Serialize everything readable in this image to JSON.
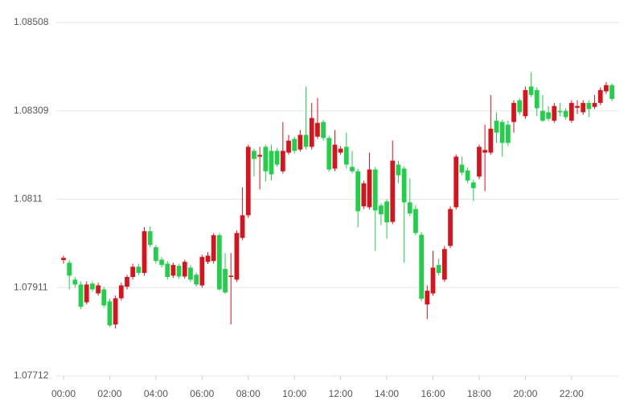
{
  "chart_data": {
    "type": "candlestick",
    "x": [
      0,
      0.25,
      0.5,
      0.75,
      1,
      1.25,
      1.5,
      1.75,
      2,
      2.25,
      2.5,
      2.75,
      3,
      3.25,
      3.5,
      3.75,
      4,
      4.25,
      4.5,
      4.75,
      5,
      5.25,
      5.5,
      5.75,
      6,
      6.25,
      6.5,
      6.75,
      7,
      7.25,
      7.5,
      7.75,
      8,
      8.25,
      8.5,
      8.75,
      9,
      9.25,
      9.5,
      9.75,
      10,
      10.25,
      10.5,
      10.75,
      11,
      11.25,
      11.5,
      11.75,
      12,
      12.25,
      12.5,
      12.75,
      13,
      13.25,
      13.5,
      13.75,
      14,
      14.25,
      14.5,
      14.75,
      15,
      15.25,
      15.5,
      15.75,
      16,
      16.25,
      16.5,
      16.75,
      17,
      17.25,
      17.5,
      17.75,
      18,
      18.25,
      18.5,
      18.75,
      19,
      19.25,
      19.5,
      19.75,
      20,
      20.25,
      20.5,
      20.75,
      21,
      21.25,
      21.5,
      21.75,
      22,
      22.25,
      22.5,
      22.75,
      23,
      23.25,
      23.5,
      23.75
    ],
    "open": [
      1.07973,
      1.07967,
      1.07929,
      1.07918,
      1.07878,
      1.0792,
      1.07898,
      1.07907,
      1.0788,
      1.07828,
      1.07887,
      1.07913,
      1.07935,
      1.07958,
      1.07944,
      1.08038,
      1.08002,
      1.07974,
      1.07965,
      1.07938,
      1.0796,
      1.07936,
      1.07956,
      1.0794,
      1.07916,
      1.07969,
      1.07971,
      1.08029,
      1.07953,
      1.07935,
      1.07929,
      1.08023,
      1.08074,
      1.08219,
      1.08206,
      1.08228,
      1.08219,
      1.08219,
      1.08173,
      1.08215,
      1.08246,
      1.08222,
      1.08255,
      1.08228,
      1.08251,
      1.08284,
      1.08248,
      1.08179,
      1.08215,
      1.08228,
      1.08183,
      1.08173,
      1.08094,
      1.08092,
      1.08177,
      1.08096,
      1.08105,
      1.08059,
      1.08188,
      1.08179,
      1.08103,
      1.08088,
      1.0803,
      1.07873,
      1.07898,
      1.07962,
      1.07929,
      1.08005,
      1.08092,
      1.08188,
      1.08175,
      1.08148,
      1.08161,
      1.08215,
      1.08215,
      1.08287,
      1.08284,
      1.08278,
      1.08284,
      1.08333,
      1.08297,
      1.08364,
      1.08356,
      1.08309,
      1.08306,
      1.08287,
      1.08309,
      1.08309,
      1.08287,
      1.08316,
      1.08306,
      1.08327,
      1.08318,
      1.08327,
      1.08353,
      1.08367
    ],
    "high": [
      1.07983,
      1.07973,
      1.07935,
      1.07925,
      1.07925,
      1.07925,
      1.07922,
      1.07913,
      1.07886,
      1.07893,
      1.07922,
      1.0794,
      1.07965,
      1.07965,
      1.08047,
      1.08049,
      1.08007,
      1.0798,
      1.07971,
      1.07967,
      1.07965,
      1.07974,
      1.07962,
      1.07945,
      1.07985,
      1.07991,
      1.08034,
      1.08034,
      1.07989,
      1.07989,
      1.0804,
      1.08137,
      1.08233,
      1.08224,
      1.08228,
      1.08233,
      1.08233,
      1.08226,
      1.08284,
      1.08255,
      1.08251,
      1.08266,
      1.08364,
      1.08327,
      1.08338,
      1.08289,
      1.08253,
      1.08266,
      1.0823,
      1.0826,
      1.08219,
      1.08179,
      1.08152,
      1.08215,
      1.08183,
      1.08101,
      1.0811,
      1.08242,
      1.08197,
      1.08184,
      1.08157,
      1.08096,
      1.08036,
      1.07916,
      1.07994,
      1.07976,
      1.08005,
      1.08094,
      1.08211,
      1.08206,
      1.08181,
      1.08154,
      1.08233,
      1.08278,
      1.08345,
      1.08306,
      1.08289,
      1.08287,
      1.08333,
      1.08338,
      1.08364,
      1.08396,
      1.08362,
      1.08345,
      1.0832,
      1.08327,
      1.08327,
      1.08315,
      1.08333,
      1.08333,
      1.08333,
      1.08333,
      1.08345,
      1.08362,
      1.08374,
      1.08371
    ],
    "low": [
      1.07965,
      1.07907,
      1.07911,
      1.07862,
      1.07873,
      1.07902,
      1.07893,
      1.07866,
      1.07822,
      1.07819,
      1.07882,
      1.07907,
      1.07929,
      1.07938,
      1.07938,
      1.08002,
      1.07965,
      1.07956,
      1.07929,
      1.07933,
      1.07931,
      1.07931,
      1.07924,
      1.07913,
      1.07911,
      1.07964,
      1.07965,
      1.07904,
      1.07897,
      1.07828,
      1.07924,
      1.08018,
      1.08068,
      1.08161,
      1.08132,
      1.0815,
      1.08152,
      1.08183,
      1.08168,
      1.0821,
      1.08213,
      1.08217,
      1.08222,
      1.08222,
      1.08246,
      1.08242,
      1.08172,
      1.08173,
      1.0821,
      1.08179,
      1.08168,
      1.08047,
      1.08088,
      1.08087,
      1.07994,
      1.08052,
      1.08021,
      1.08054,
      1.08146,
      1.07967,
      1.08072,
      1.08029,
      1.0788,
      1.0784,
      1.07893,
      1.07938,
      1.07924,
      1.08,
      1.08087,
      1.08164,
      1.08146,
      1.08106,
      1.08155,
      1.08128,
      1.0821,
      1.08237,
      1.08206,
      1.0823,
      1.0826,
      1.083,
      1.08291,
      1.0834,
      1.08297,
      1.08284,
      1.08286,
      1.08282,
      1.08297,
      1.08289,
      1.08282,
      1.08302,
      1.083,
      1.08295,
      1.08313,
      1.08322,
      1.08347,
      1.08331
    ],
    "close": [
      1.07978,
      1.07938,
      1.07918,
      1.07868,
      1.07918,
      1.07907,
      1.07916,
      1.07871,
      1.07826,
      1.07887,
      1.07916,
      1.07935,
      1.07958,
      1.07944,
      1.08038,
      1.08007,
      1.07971,
      1.07962,
      1.07935,
      1.07962,
      1.07936,
      1.07969,
      1.07929,
      1.07918,
      1.0798,
      1.07983,
      1.08029,
      1.07907,
      1.079,
      1.07938,
      1.08034,
      1.08074,
      1.08228,
      1.08201,
      1.0821,
      1.08173,
      1.08166,
      1.08188,
      1.08219,
      1.08242,
      1.08219,
      1.08255,
      1.08228,
      1.08293,
      1.08282,
      1.08248,
      1.08177,
      1.08233,
      1.08224,
      1.08188,
      1.08173,
      1.08083,
      1.08146,
      1.08177,
      1.08085,
      1.08076,
      1.08058,
      1.08197,
      1.08164,
      1.08103,
      1.08078,
      1.08034,
      1.07886,
      1.07904,
      1.07956,
      1.07944,
      1.07998,
      1.08088,
      1.08206,
      1.0817,
      1.08152,
      1.08135,
      1.08228,
      1.08221,
      1.08269,
      1.0826,
      1.08237,
      1.08237,
      1.08327,
      1.08306,
      1.08356,
      1.08345,
      1.08315,
      1.08287,
      1.08291,
      1.0832,
      1.08306,
      1.08295,
      1.08327,
      1.0832,
      1.08327,
      1.08313,
      1.08327,
      1.08356,
      1.08367,
      1.08336
    ],
    "up_color": "#d7141e",
    "down_color": "#22cf4b",
    "xlim": [
      -0.3,
      24.05
    ],
    "xticks": [
      {
        "value": 0,
        "label": "00:00"
      },
      {
        "value": 2,
        "label": "02:00"
      },
      {
        "value": 4,
        "label": "04:00"
      },
      {
        "value": 6,
        "label": "06:00"
      },
      {
        "value": 8,
        "label": "08:00"
      },
      {
        "value": 10,
        "label": "10:00"
      },
      {
        "value": 12,
        "label": "12:00"
      },
      {
        "value": 14,
        "label": "14:00"
      },
      {
        "value": 16,
        "label": "16:00"
      },
      {
        "value": 18,
        "label": "18:00"
      },
      {
        "value": 20,
        "label": "20:00"
      },
      {
        "value": 22,
        "label": "22:00"
      }
    ],
    "ylim": [
      1.07712,
      1.08508
    ],
    "yticks": [
      1.07712,
      1.07911,
      1.0811,
      1.08309,
      1.08508
    ],
    "grid": true
  }
}
